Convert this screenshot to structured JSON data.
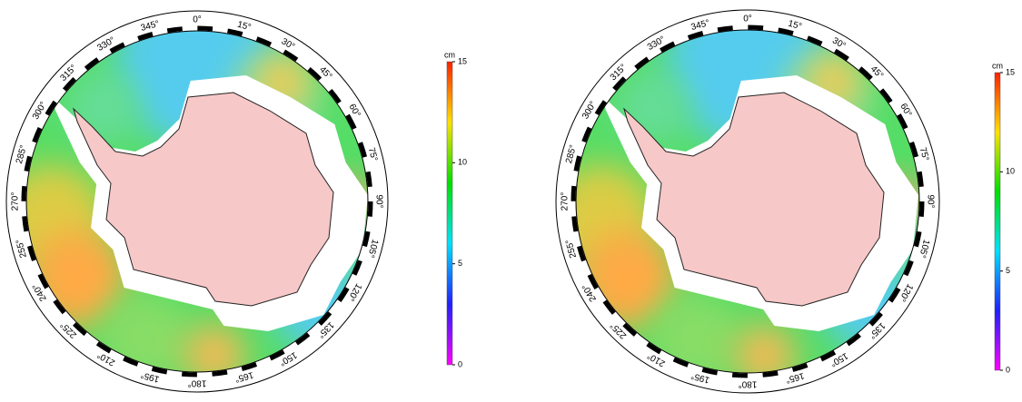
{
  "maps": [
    {
      "lon_labels": [
        {
          "value": 0,
          "label": "0°"
        },
        {
          "value": 15,
          "label": "15°"
        },
        {
          "value": 30,
          "label": "30°"
        },
        {
          "value": 45,
          "label": "45°"
        },
        {
          "value": 60,
          "label": "60°"
        },
        {
          "value": 75,
          "label": "75°"
        },
        {
          "value": 90,
          "label": "90°"
        },
        {
          "value": 105,
          "label": "105°"
        },
        {
          "value": 120,
          "label": "120°"
        },
        {
          "value": 135,
          "label": "135°"
        },
        {
          "value": 150,
          "label": "150°"
        },
        {
          "value": 165,
          "label": "165°"
        },
        {
          "value": 180,
          "label": "180°"
        },
        {
          "value": 195,
          "label": "195°"
        },
        {
          "value": 210,
          "label": "210°"
        },
        {
          "value": 225,
          "label": "225°"
        },
        {
          "value": 240,
          "label": "240°"
        },
        {
          "value": 255,
          "label": "255°"
        },
        {
          "value": 270,
          "label": "270°"
        },
        {
          "value": 285,
          "label": "285°"
        },
        {
          "value": 300,
          "label": "300°"
        },
        {
          "value": 315,
          "label": "315°"
        },
        {
          "value": 330,
          "label": "330°"
        },
        {
          "value": 345,
          "label": "345°"
        }
      ],
      "colorbar": {
        "unit": "cm",
        "range": [
          0,
          15
        ],
        "ticks": [
          0,
          5,
          10,
          15
        ]
      }
    },
    {
      "lon_labels": [
        {
          "value": 0,
          "label": "0°"
        },
        {
          "value": 15,
          "label": "15°"
        },
        {
          "value": 30,
          "label": "30°"
        },
        {
          "value": 45,
          "label": "45°"
        },
        {
          "value": 60,
          "label": "60°"
        },
        {
          "value": 75,
          "label": "75°"
        },
        {
          "value": 90,
          "label": "90°"
        },
        {
          "value": 105,
          "label": "105°"
        },
        {
          "value": 120,
          "label": "120°"
        },
        {
          "value": 135,
          "label": "135°"
        },
        {
          "value": 150,
          "label": "150°"
        },
        {
          "value": 165,
          "label": "165°"
        },
        {
          "value": 180,
          "label": "180°"
        },
        {
          "value": 195,
          "label": "195°"
        },
        {
          "value": 210,
          "label": "210°"
        },
        {
          "value": 225,
          "label": "225°"
        },
        {
          "value": 240,
          "label": "240°"
        },
        {
          "value": 255,
          "label": "255°"
        },
        {
          "value": 270,
          "label": "270°"
        },
        {
          "value": 285,
          "label": "285°"
        },
        {
          "value": 300,
          "label": "300°"
        },
        {
          "value": 315,
          "label": "315°"
        },
        {
          "value": 330,
          "label": "330°"
        },
        {
          "value": 345,
          "label": "345°"
        }
      ],
      "colorbar": {
        "unit": "cm",
        "range": [
          0,
          15
        ],
        "ticks": [
          0,
          5,
          10,
          15
        ]
      }
    }
  ]
}
